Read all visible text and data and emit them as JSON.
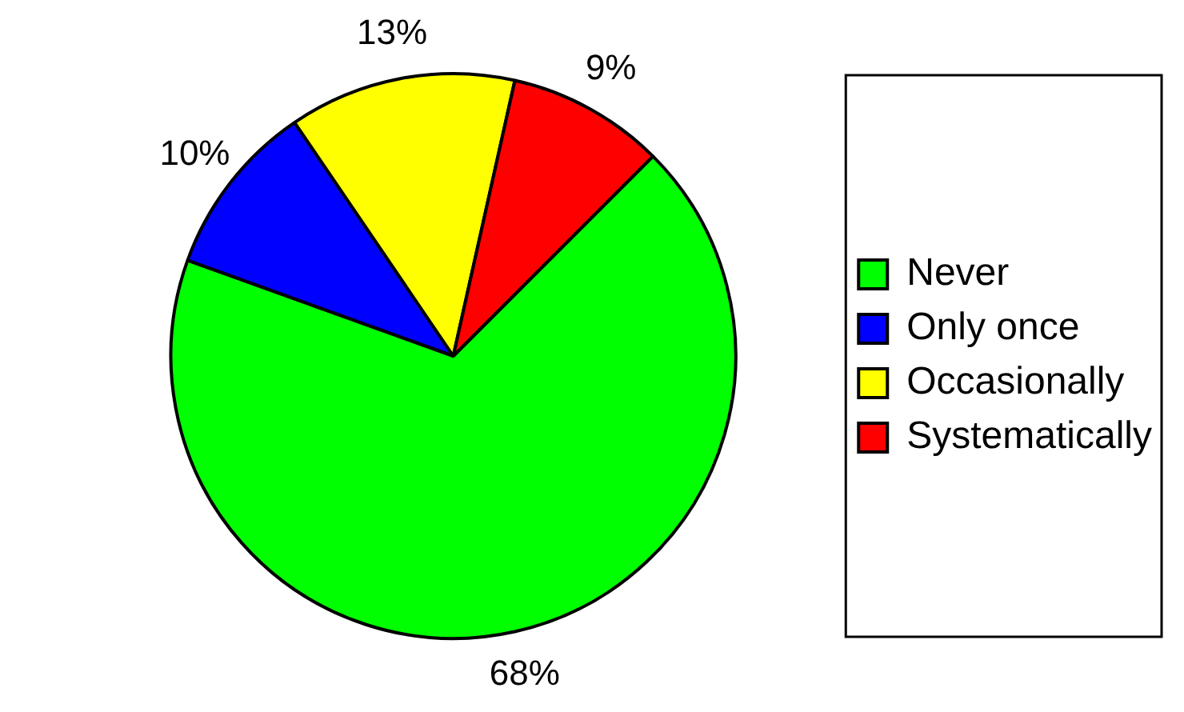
{
  "chart_data": {
    "type": "pie",
    "categories": [
      "Never",
      "Only once",
      "Occasionally",
      "Systematically"
    ],
    "values": [
      68,
      10,
      13,
      9
    ],
    "colors": [
      "#00ff00",
      "#0000ff",
      "#ffff00",
      "#ff0000"
    ],
    "value_labels": [
      "68%",
      "10%",
      "13%",
      "9%"
    ],
    "legend": "right"
  }
}
